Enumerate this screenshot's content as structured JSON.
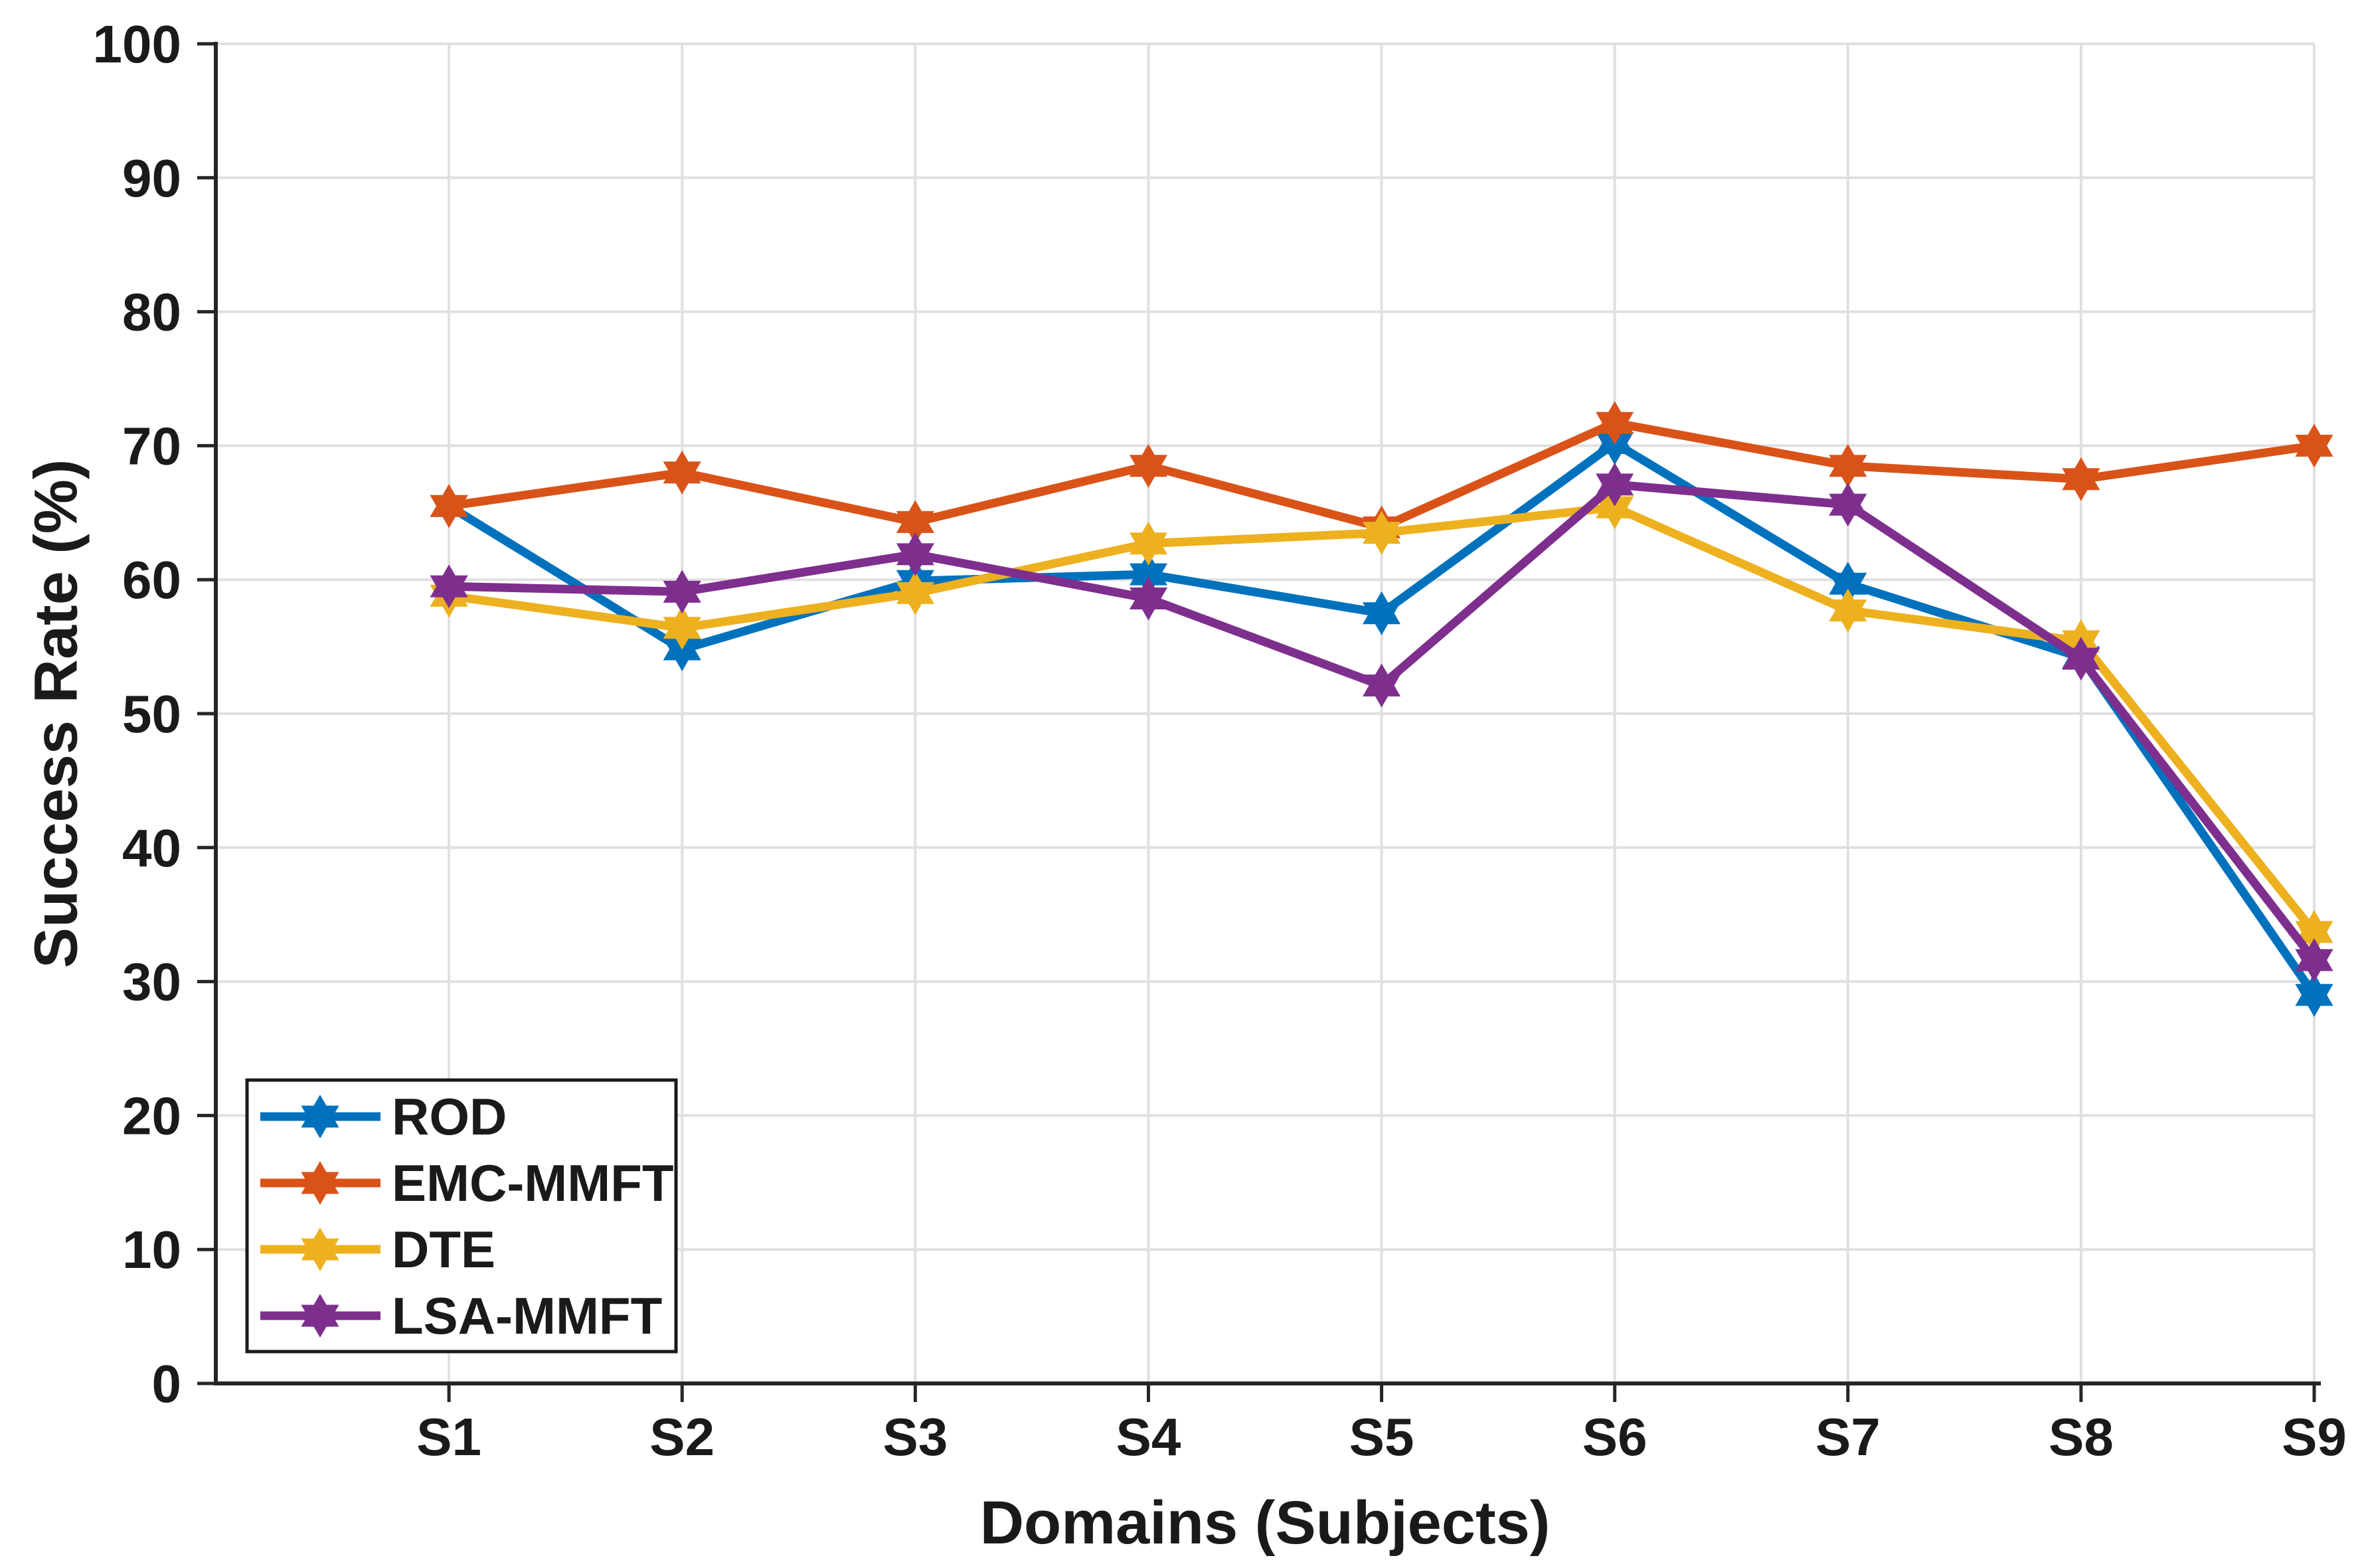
{
  "chart_data": {
    "type": "line",
    "title": "",
    "xlabel": "Domains (Subjects)",
    "ylabel": "Success Rate (%)",
    "categories": [
      "S1",
      "S2",
      "S3",
      "S4",
      "S5",
      "S6",
      "S7",
      "S8",
      "S9"
    ],
    "ylim": [
      0,
      100
    ],
    "ytick_labels": [
      "0",
      "10",
      "20",
      "30",
      "40",
      "50",
      "60",
      "70",
      "80",
      "90",
      "100"
    ],
    "grid": true,
    "legend_position": "lower-left",
    "marker": "hexagram",
    "colors": {
      "grid": "#e0e0e0",
      "axis": "#262626",
      "text": "#1a1a1a",
      "background": "#ffffff"
    },
    "series": [
      {
        "name": "ROD",
        "color": "#0072BD",
        "values": [
          65.5,
          54.8,
          59.9,
          60.4,
          57.5,
          70.2,
          59.7,
          54.2,
          29.0
        ]
      },
      {
        "name": "EMC-MMFT",
        "color": "#D95319",
        "values": [
          65.5,
          68.0,
          64.3,
          68.5,
          63.9,
          71.7,
          68.5,
          67.5,
          70.0
        ]
      },
      {
        "name": "DTE",
        "color": "#EDB120",
        "values": [
          58.8,
          56.4,
          59.0,
          62.7,
          63.5,
          65.4,
          57.7,
          55.4,
          33.7
        ]
      },
      {
        "name": "LSA-MMFT",
        "color": "#7E2F8E",
        "values": [
          59.5,
          59.1,
          61.9,
          58.6,
          52.1,
          67.1,
          65.6,
          54.1,
          31.6
        ]
      }
    ],
    "legend_labels": [
      "ROD",
      "EMC-MMFT",
      "DTE",
      "LSA-MMFT"
    ]
  }
}
